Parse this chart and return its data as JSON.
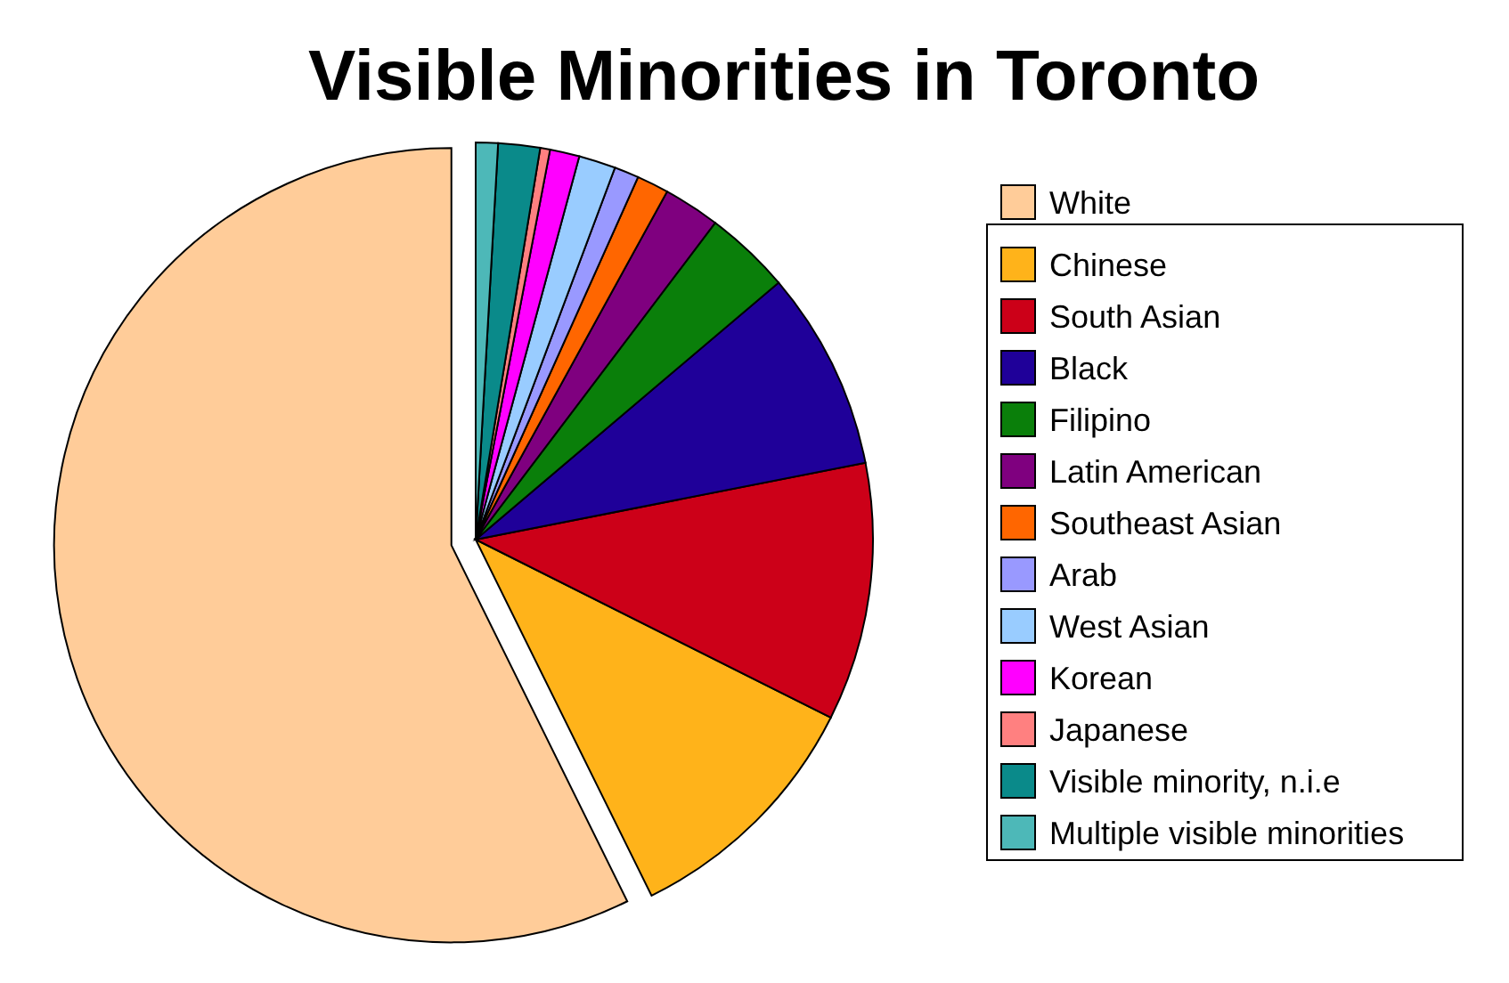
{
  "chart_data": {
    "type": "pie",
    "title": "Visible Minorities in Toronto",
    "categories": [
      "White",
      "Chinese",
      "South Asian",
      "Black",
      "Filipino",
      "Latin American",
      "Southeast Asian",
      "Arab",
      "West Asian",
      "Korean",
      "Japanese",
      "Visible minority, n.i.e",
      "Multiple visible minorities"
    ],
    "values": [
      57.3,
      10.3,
      10.5,
      8.1,
      3.5,
      2.3,
      1.3,
      1.0,
      1.5,
      1.2,
      0.4,
      1.7,
      0.9
    ],
    "colors": [
      "#ffcc99",
      "#ffb31a",
      "#cc0018",
      "#1f0099",
      "#0a7f0a",
      "#7f007f",
      "#ff6600",
      "#9999ff",
      "#99ccff",
      "#ff00ff",
      "#ff8080",
      "#0a8a8a",
      "#4db8b8"
    ],
    "legend": "right"
  }
}
